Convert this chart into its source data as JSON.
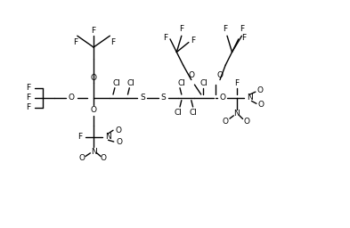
{
  "figsize": [
    3.93,
    2.56
  ],
  "dpi": 100,
  "bg_color": "white",
  "line_color": "black",
  "lw": 1.0,
  "fs": 6.5,
  "xlim": [
    0,
    10
  ],
  "ylim": [
    0,
    7
  ]
}
